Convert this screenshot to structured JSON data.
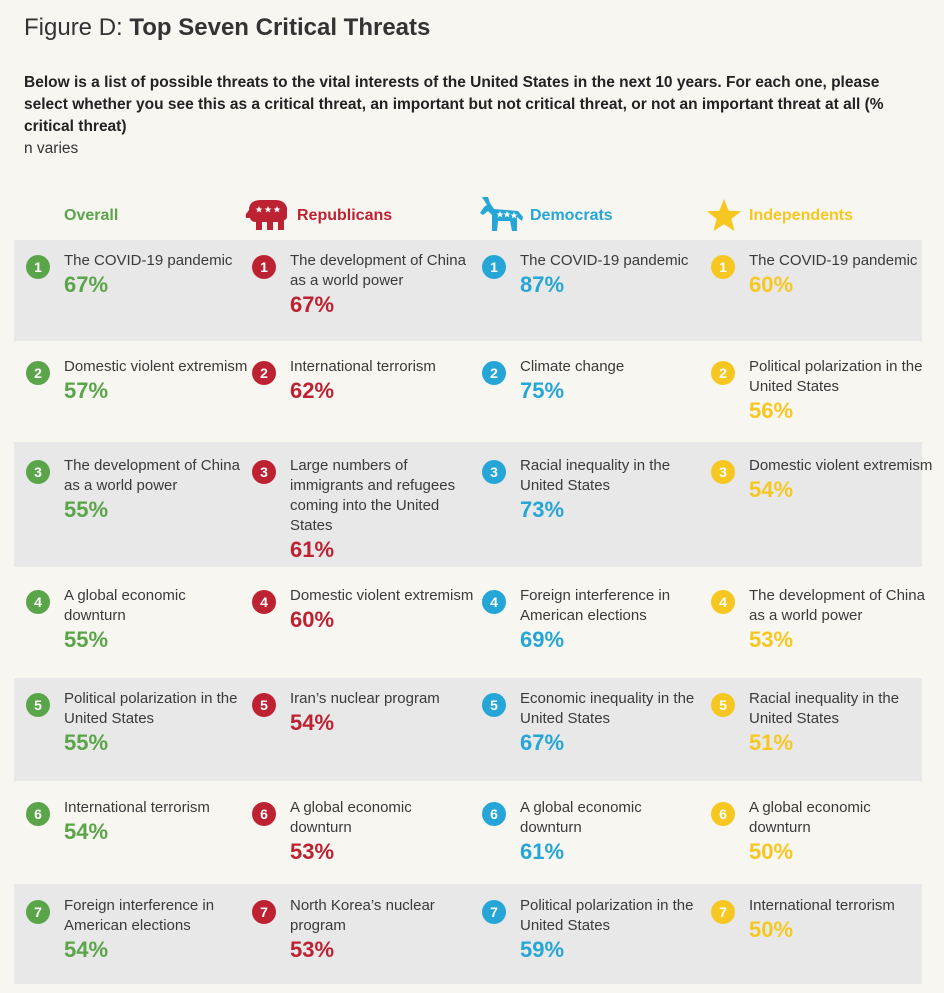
{
  "figure": {
    "prefix": "Figure D:",
    "title": "Top Seven Critical Threats",
    "question": "Below is a list of possible threats to the vital interests of the United States in the next 10 years. For each one, please select whether you see this as a critical threat, an important but not critical threat, or not an important threat at all (% critical threat)",
    "note": "n varies"
  },
  "colors": {
    "overall": "#5aa449",
    "republicans": "#bd2232",
    "democrats": "#25a6d6",
    "independents": "#f7c721",
    "band": "#e8e8e8",
    "background": "#f8f6f1"
  },
  "chart_data": {
    "type": "table",
    "unit": "% critical threat",
    "groups": [
      {
        "name": "Overall",
        "icon": "none",
        "items": [
          {
            "rank": "1",
            "label": "The COVID-19 pandemic",
            "value": "67%"
          },
          {
            "rank": "2",
            "label": "Domestic violent extremism",
            "value": "57%"
          },
          {
            "rank": "3",
            "label": "The development of China as a world power",
            "value": "55%"
          },
          {
            "rank": "4",
            "label": "A global economic downturn",
            "value": "55%"
          },
          {
            "rank": "5",
            "label": "Political polarization in the United States",
            "value": "55%"
          },
          {
            "rank": "6",
            "label": "International terrorism",
            "value": "54%"
          },
          {
            "rank": "7",
            "label": "Foreign interference in American elections",
            "value": "54%"
          }
        ]
      },
      {
        "name": "Republicans",
        "icon": "elephant-icon",
        "items": [
          {
            "rank": "1",
            "label": "The development of China as a world power",
            "value": "67%"
          },
          {
            "rank": "2",
            "label": "International terrorism",
            "value": "62%"
          },
          {
            "rank": "3",
            "label": "Large numbers of immigrants and refugees coming into the United States",
            "value": "61%"
          },
          {
            "rank": "4",
            "label": "Domestic violent extremism",
            "value": "60%"
          },
          {
            "rank": "5",
            "label": "Iran’s nuclear program",
            "value": "54%"
          },
          {
            "rank": "6",
            "label": "A global economic downturn",
            "value": "53%"
          },
          {
            "rank": "7",
            "label": "North Korea’s nuclear program",
            "value": "53%"
          }
        ]
      },
      {
        "name": "Democrats",
        "icon": "donkey-icon",
        "items": [
          {
            "rank": "1",
            "label": "The COVID-19 pandemic",
            "value": "87%"
          },
          {
            "rank": "2",
            "label": "Climate change",
            "value": "75%"
          },
          {
            "rank": "3",
            "label": "Racial inequality in the United States",
            "value": "73%"
          },
          {
            "rank": "4",
            "label": "Foreign interference in American elections",
            "value": "69%"
          },
          {
            "rank": "5",
            "label": "Economic inequality in the United States",
            "value": "67%"
          },
          {
            "rank": "6",
            "label": "A global economic downturn",
            "value": "61%"
          },
          {
            "rank": "7",
            "label": "Political polarization in the United States",
            "value": "59%"
          }
        ]
      },
      {
        "name": "Independents",
        "icon": "star-icon",
        "items": [
          {
            "rank": "1",
            "label": "The COVID-19 pandemic",
            "value": "60%"
          },
          {
            "rank": "2",
            "label": "Political polarization in the United States",
            "value": "56%"
          },
          {
            "rank": "3",
            "label": "Domestic violent extremism",
            "value": "54%"
          },
          {
            "rank": "4",
            "label": "The development of China as a world power",
            "value": "53%"
          },
          {
            "rank": "5",
            "label": "Racial inequality in the United States",
            "value": "51%"
          },
          {
            "rank": "6",
            "label": "A global economic downturn",
            "value": "50%"
          },
          {
            "rank": "7",
            "label": "International terrorism",
            "value": "50%"
          }
        ]
      }
    ]
  }
}
